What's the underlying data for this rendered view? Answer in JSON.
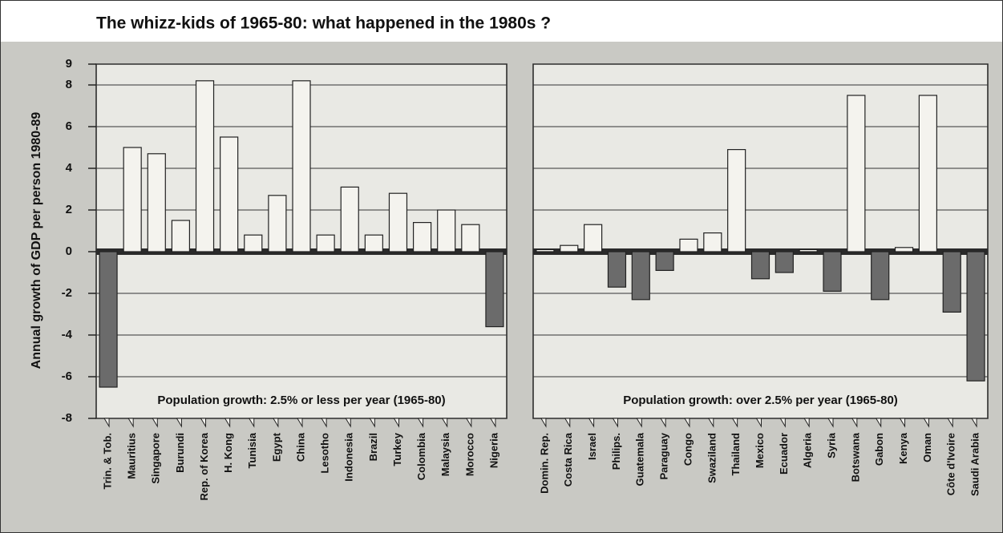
{
  "title": "The whizz-kids of 1965-80: what happened in the 1980s ?",
  "y_label": "Annual growth of GDP per person 1980-89",
  "chart_data": [
    {
      "type": "bar",
      "subtitle": "Population growth: 2.5% or less per year (1965-80)",
      "categories": [
        "Trin. & Tob.",
        "Mauritius",
        "Singapore",
        "Burundi",
        "Rep. of Korea",
        "H. Kong",
        "Tunisia",
        "Egypt",
        "China",
        "Lesotho",
        "Indonesia",
        "Brazil",
        "Turkey",
        "Colombia",
        "Malaysia",
        "Morocco",
        "Nigeria"
      ],
      "values": [
        -6.5,
        5.0,
        4.7,
        1.5,
        8.2,
        5.5,
        0.8,
        2.7,
        8.2,
        0.8,
        3.1,
        0.8,
        2.8,
        1.4,
        2.0,
        1.3,
        -3.6
      ],
      "color": "#f4f3ee",
      "negative_color": "#6b6b6b",
      "ylim": [
        -8,
        9
      ],
      "yticks": [
        9,
        8,
        6,
        4,
        2,
        0,
        -2,
        -4,
        -6,
        -8
      ],
      "grid": true
    },
    {
      "type": "bar",
      "subtitle": "Population growth: over 2.5% per year (1965-80)",
      "categories": [
        "Domin. Rep.",
        "Costa Rica",
        "Israel",
        "Philips.",
        "Guatemala",
        "Paraguay",
        "Congo",
        "Swaziland",
        "Thailand",
        "Mexico",
        "Ecuador",
        "Algeria",
        "Syria",
        "Botswana",
        "Gabon",
        "Kenya",
        "Oman",
        "Côte d'Ivoire",
        "Saudi Arabia"
      ],
      "values": [
        0.1,
        0.3,
        1.3,
        -1.7,
        -2.3,
        -0.9,
        0.6,
        0.9,
        4.9,
        -1.3,
        -1.0,
        0.1,
        -1.9,
        7.5,
        -2.3,
        0.2,
        7.5,
        -2.9,
        -6.2
      ],
      "color": "#f4f3ee",
      "negative_color": "#6b6b6b",
      "ylim": [
        -8,
        9
      ],
      "yticks": [
        9,
        8,
        6,
        4,
        2,
        0,
        -2,
        -4,
        -6,
        -8
      ],
      "grid": true
    }
  ]
}
